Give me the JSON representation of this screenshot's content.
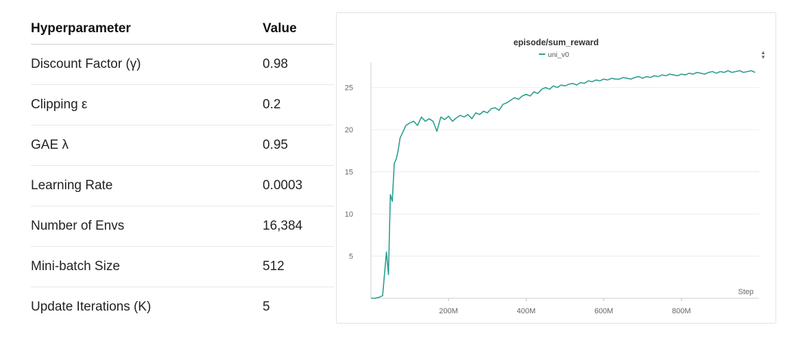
{
  "table": {
    "headers": {
      "param": "Hyperparameter",
      "value": "Value"
    },
    "rows": [
      {
        "param": "Discount Factor (γ)",
        "value": "0.98"
      },
      {
        "param": "Clipping ε",
        "value": "0.2"
      },
      {
        "param": "GAE λ",
        "value": "0.95"
      },
      {
        "param": "Learning Rate",
        "value": "0.0003"
      },
      {
        "param": "Number of Envs",
        "value": "16,384"
      },
      {
        "param": "Mini-batch Size",
        "value": "512"
      },
      {
        "param": "Update Iterations (K)",
        "value": "5"
      }
    ]
  },
  "icons": {
    "sort": "sort-updown-icon"
  },
  "colors": {
    "series": "#2a9d8f",
    "grid": "#ececec"
  },
  "chart_data": {
    "type": "line",
    "title": "episode/sum_reward",
    "xlabel": "Step",
    "ylabel": "",
    "xlim": [
      0,
      1000000000
    ],
    "ylim": [
      0,
      27.5
    ],
    "x_tick_labels": [
      "200M",
      "400M",
      "600M",
      "800M"
    ],
    "y_tick_labels": [
      "5",
      "10",
      "15",
      "20",
      "25"
    ],
    "grid": true,
    "legend_position": "top-center",
    "series": [
      {
        "name": "uni_v0",
        "x": [
          0,
          10000000,
          20000000,
          30000000,
          40000000,
          45000000,
          50000000,
          55000000,
          60000000,
          65000000,
          70000000,
          75000000,
          80000000,
          85000000,
          90000000,
          100000000,
          110000000,
          120000000,
          130000000,
          140000000,
          150000000,
          160000000,
          170000000,
          180000000,
          190000000,
          200000000,
          210000000,
          220000000,
          230000000,
          240000000,
          250000000,
          260000000,
          270000000,
          280000000,
          290000000,
          300000000,
          310000000,
          320000000,
          330000000,
          340000000,
          350000000,
          360000000,
          370000000,
          380000000,
          390000000,
          400000000,
          410000000,
          420000000,
          430000000,
          440000000,
          450000000,
          460000000,
          470000000,
          480000000,
          490000000,
          500000000,
          510000000,
          520000000,
          530000000,
          540000000,
          550000000,
          560000000,
          570000000,
          580000000,
          590000000,
          600000000,
          610000000,
          620000000,
          630000000,
          640000000,
          650000000,
          660000000,
          670000000,
          680000000,
          690000000,
          700000000,
          710000000,
          720000000,
          730000000,
          740000000,
          750000000,
          760000000,
          770000000,
          780000000,
          790000000,
          800000000,
          810000000,
          820000000,
          830000000,
          840000000,
          850000000,
          860000000,
          870000000,
          880000000,
          890000000,
          900000000,
          910000000,
          920000000,
          930000000,
          940000000,
          950000000,
          960000000,
          970000000,
          980000000,
          990000000
        ],
        "values": [
          0.0,
          0.0,
          0.1,
          0.3,
          5.5,
          2.8,
          12.3,
          11.5,
          16.0,
          16.5,
          17.5,
          19.0,
          19.5,
          20.0,
          20.5,
          20.8,
          21.0,
          20.5,
          21.5,
          21.0,
          21.3,
          21.0,
          19.8,
          21.5,
          21.2,
          21.6,
          21.0,
          21.4,
          21.7,
          21.5,
          21.8,
          21.3,
          22.0,
          21.8,
          22.2,
          22.0,
          22.5,
          22.6,
          22.3,
          23.0,
          23.2,
          23.5,
          23.8,
          23.6,
          24.0,
          24.2,
          24.0,
          24.5,
          24.3,
          24.8,
          25.0,
          24.8,
          25.2,
          25.0,
          25.3,
          25.2,
          25.4,
          25.5,
          25.3,
          25.6,
          25.5,
          25.8,
          25.7,
          25.9,
          25.8,
          26.0,
          25.9,
          26.1,
          26.0,
          26.0,
          26.2,
          26.1,
          26.0,
          26.2,
          26.3,
          26.1,
          26.3,
          26.2,
          26.4,
          26.3,
          26.5,
          26.4,
          26.6,
          26.5,
          26.4,
          26.6,
          26.5,
          26.7,
          26.6,
          26.8,
          26.7,
          26.6,
          26.8,
          26.9,
          26.7,
          26.9,
          26.8,
          27.0,
          26.8,
          26.9,
          27.0,
          26.8,
          26.9,
          27.0,
          26.8
        ]
      }
    ]
  }
}
